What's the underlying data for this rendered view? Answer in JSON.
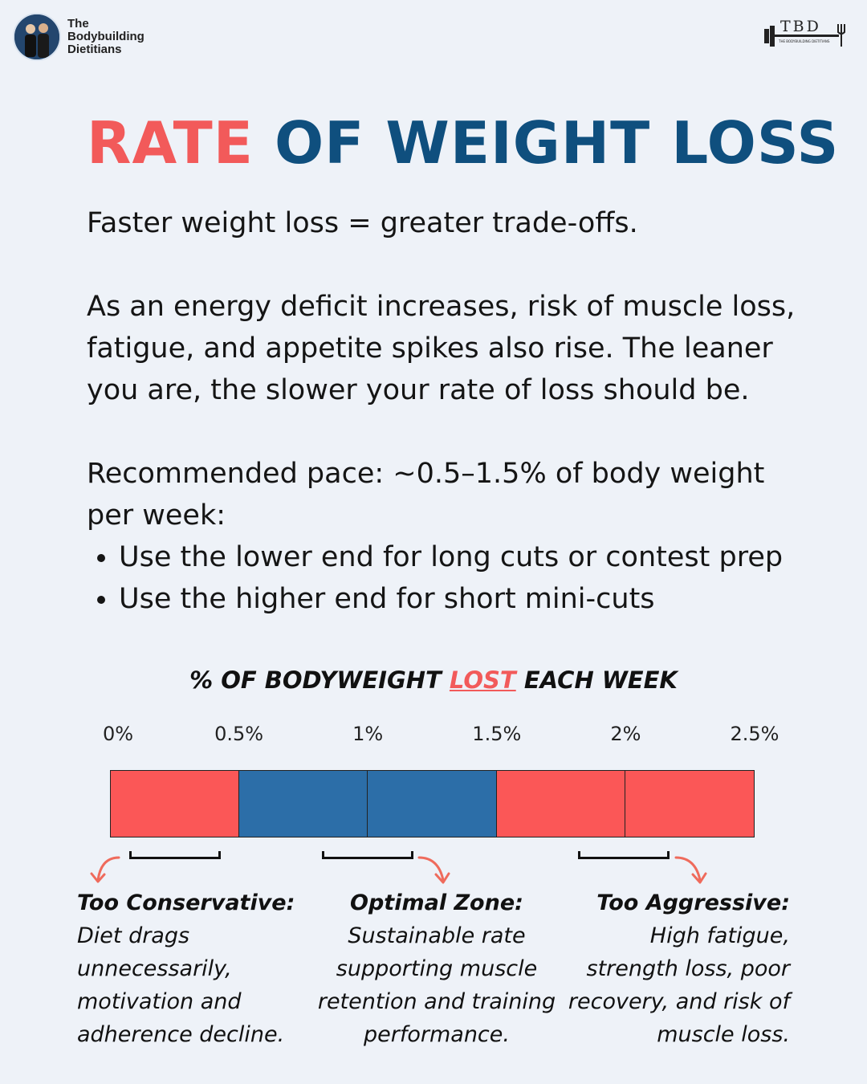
{
  "brand": {
    "name_lines": [
      "The",
      "Bodybuilding",
      "Dietitians"
    ],
    "logo_text": "TBD",
    "logo_subtext": "THE BODYBUILDING DIETITIANS"
  },
  "title": {
    "part1": "RATE",
    "part2": "OF WEIGHT LOSS"
  },
  "body": {
    "line1": "Faster weight loss = greater trade-offs.",
    "para2": "As an energy deficit increases, risk of muscle loss, fatigue, and appetite spikes also rise. The leaner you are, the slower your rate of loss should be.",
    "para3": "Recommended pace: ~0.5–1.5% of body weight per week:",
    "bullets": [
      "Use the lower end for long cuts or contest prep",
      "Use the higher end for short mini-cuts"
    ]
  },
  "chart_data": {
    "type": "bar",
    "title_pre": "% OF BODYWEIGHT",
    "title_emph": "LOST",
    "title_post": "EACH WEEK",
    "ticks": [
      "0%",
      "0.5%",
      "1%",
      "1.5%",
      "2%",
      "2.5%"
    ],
    "tick_values": [
      0,
      0.5,
      1,
      1.5,
      2,
      2.5
    ],
    "range": [
      0,
      2.5
    ],
    "segments": [
      {
        "from": 0,
        "to": 0.5,
        "zone": "too-conservative",
        "color": "#fb5757"
      },
      {
        "from": 0.5,
        "to": 1,
        "zone": "optimal",
        "color": "#2c6ea8"
      },
      {
        "from": 1,
        "to": 1.5,
        "zone": "optimal",
        "color": "#2c6ea8"
      },
      {
        "from": 1.5,
        "to": 2,
        "zone": "too-aggressive",
        "color": "#fb5757"
      },
      {
        "from": 2,
        "to": 2.5,
        "zone": "too-aggressive",
        "color": "#fb5757"
      }
    ]
  },
  "callouts": {
    "left": {
      "head": "Too Conservative:",
      "lines": [
        "Diet drags",
        "unnecessarily,",
        "motivation and",
        "adherence decline."
      ]
    },
    "center": {
      "head": "Optimal Zone:",
      "lines": [
        "Sustainable rate",
        "supporting muscle",
        "retention and training",
        "performance."
      ]
    },
    "right": {
      "head": "Too Aggressive:",
      "lines": [
        "High fatigue,",
        "strength loss, poor",
        "recovery, and risk of",
        "muscle loss."
      ]
    }
  },
  "colors": {
    "red": "#f25a5a",
    "blue": "#0f4f7e",
    "bar_red": "#fb5757",
    "bar_blue": "#2c6ea8"
  }
}
